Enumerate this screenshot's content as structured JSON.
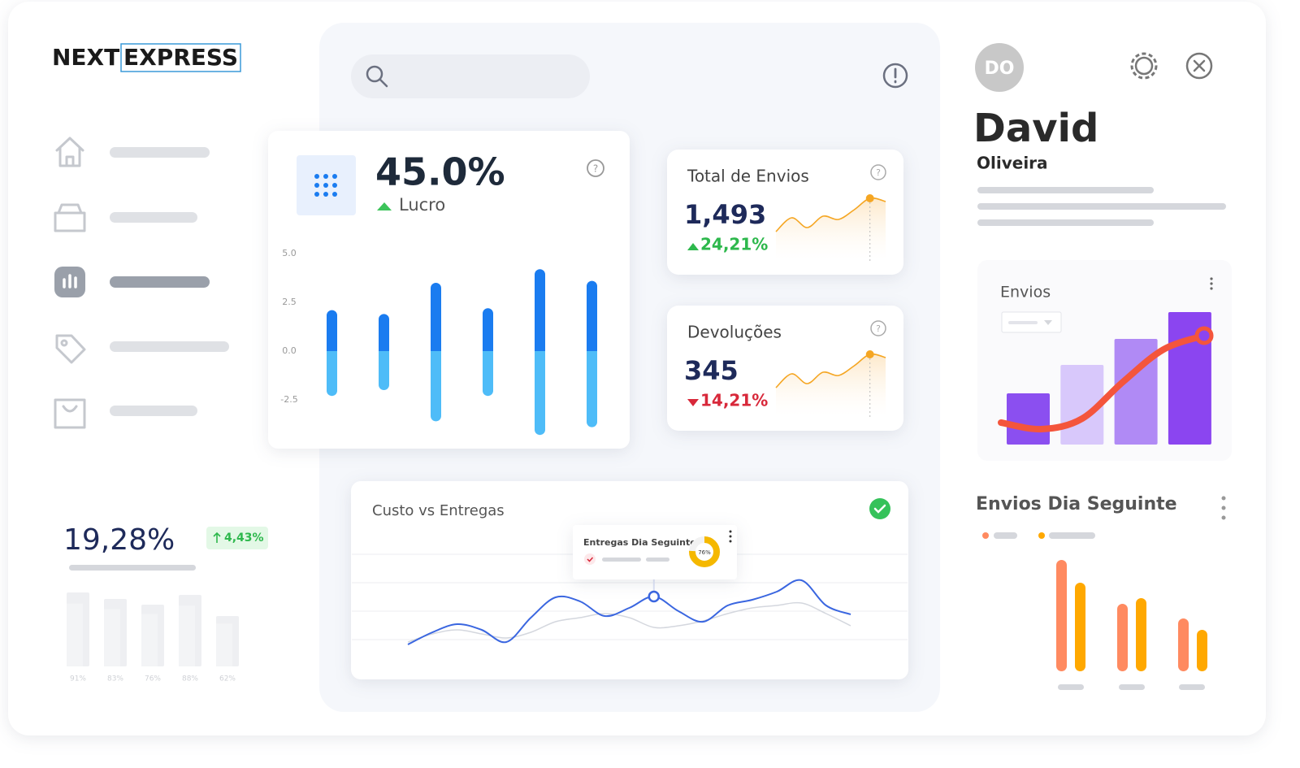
{
  "logo": {
    "part1": "NEXT",
    "part2": "EXPRESS"
  },
  "summary": {
    "value": "19,28%",
    "change": "4,43%",
    "chart": {
      "type": "bar",
      "values": [
        91,
        83,
        76,
        88,
        62
      ],
      "value_labels": [
        "91%",
        "83%",
        "76%",
        "88%",
        "62%"
      ],
      "color": "#eeeff2"
    }
  },
  "profit": {
    "value": "45.0%",
    "label": "Lucro",
    "chart": {
      "type": "bar",
      "series": [
        {
          "color": "#1a7cf0",
          "values": [
            2.1,
            1.9,
            3.5,
            2.2,
            4.2,
            3.6
          ]
        },
        {
          "color": "#4ebcf8",
          "values": [
            -2.3,
            -2.0,
            -3.6,
            -2.3,
            -4.3,
            -3.9
          ]
        }
      ],
      "ylim": [
        -4.5,
        5.0
      ],
      "yticks": [
        {
          "value": 5.0,
          "label": "5.0"
        },
        {
          "value": 2.5,
          "label": "2.5"
        },
        {
          "value": 0,
          "label": "0.0"
        },
        {
          "value": -2.5,
          "label": "-2.5"
        }
      ]
    }
  },
  "stats": [
    {
      "title": "Total de Envios",
      "value": "1,493",
      "change": "24,21%",
      "direction": "up",
      "sparkline": {
        "type": "line",
        "color": "#f5a623",
        "values": [
          5,
          22,
          10,
          24,
          20,
          32,
          46,
          42
        ],
        "highlight": 6
      }
    },
    {
      "title": "Devoluções",
      "value": "345",
      "change": "14,21%",
      "direction": "down",
      "sparkline": {
        "type": "line",
        "color": "#f5a623",
        "values": [
          5,
          22,
          10,
          24,
          20,
          32,
          46,
          42
        ],
        "highlight": 6
      }
    }
  ],
  "cost_chart": {
    "type": "line",
    "title": "Custo vs Entregas",
    "series": [
      {
        "color": "#3a66e0",
        "values": [
          7,
          22,
          32,
          25,
          10,
          40,
          65,
          60,
          42,
          52,
          66,
          48,
          35,
          55,
          62,
          72,
          86,
          55,
          44
        ]
      },
      {
        "color": "#d4d7de",
        "values": [
          10,
          20,
          25,
          20,
          15,
          22,
          35,
          40,
          45,
          40,
          28,
          30,
          36,
          45,
          52,
          55,
          58,
          45,
          30
        ]
      }
    ],
    "highlight": 10,
    "tooltip": {
      "title": "Entregas Dia Seguinte",
      "value": 76,
      "value_label": "76%",
      "color": "#f5b800"
    }
  },
  "profile": {
    "initials": "DO",
    "first_name": "David",
    "last_name": "Oliveira"
  },
  "envios": {
    "title": "Envios",
    "chart": {
      "type": "bar",
      "colors": [
        "#8b4ff0",
        "#d8c8fb",
        "#b08af5",
        "#8b45f0"
      ],
      "values": [
        63,
        98,
        130,
        163
      ],
      "line": {
        "color": "#f4553c",
        "values": [
          27,
          19,
          32,
          77,
          117,
          134
        ]
      }
    }
  },
  "next_day": {
    "title": "Envios Dia Seguinte",
    "chart": {
      "type": "bar",
      "series": [
        {
          "color": "#ff8a60",
          "values": [
            137,
            83,
            65
          ]
        },
        {
          "color": "#ffa800",
          "values": [
            109,
            90,
            51
          ]
        }
      ]
    }
  }
}
